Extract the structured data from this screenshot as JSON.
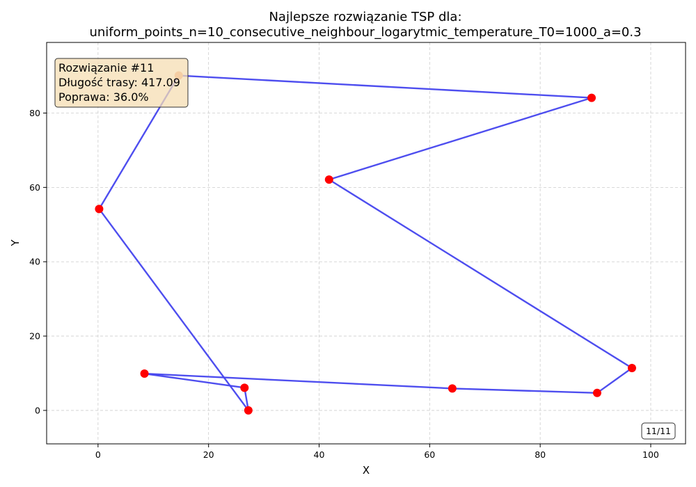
{
  "chart_data": {
    "type": "line",
    "title_line1": "Najlepsze rozwiązanie TSP dla:",
    "title_line2": "uniform_points_n=10_consecutive_neighbour_logarytmic_temperature_T0=1000_a=0.3",
    "xlabel": "X",
    "ylabel": "Y",
    "xlim": [
      -9.3,
      106.3
    ],
    "ylim": [
      -9,
      99
    ],
    "xticks": [
      0,
      20,
      40,
      60,
      80,
      100
    ],
    "yticks": [
      0,
      20,
      40,
      60,
      80
    ],
    "grid": true,
    "route": [
      {
        "x": 14.6,
        "y": 90.1
      },
      {
        "x": 89.3,
        "y": 84.1
      },
      {
        "x": 41.8,
        "y": 62.1
      },
      {
        "x": 96.6,
        "y": 11.4
      },
      {
        "x": 90.3,
        "y": 4.7
      },
      {
        "x": 64.1,
        "y": 5.9
      },
      {
        "x": 8.4,
        "y": 9.9
      },
      {
        "x": 26.5,
        "y": 6.1
      },
      {
        "x": 27.2,
        "y": 0.0
      },
      {
        "x": 0.2,
        "y": 54.2
      }
    ],
    "start_index": 0,
    "closed": true,
    "colors": {
      "route": "#4444ee",
      "point": "#ff0000",
      "start_point": "#f4a07a"
    },
    "info_box": {
      "line1": "Rozwiązanie #11",
      "line2": "Długość trasy: 417.09",
      "line3": "Poprawa: 36.0%",
      "background": "#f5deb3"
    },
    "counter": "11/11"
  }
}
